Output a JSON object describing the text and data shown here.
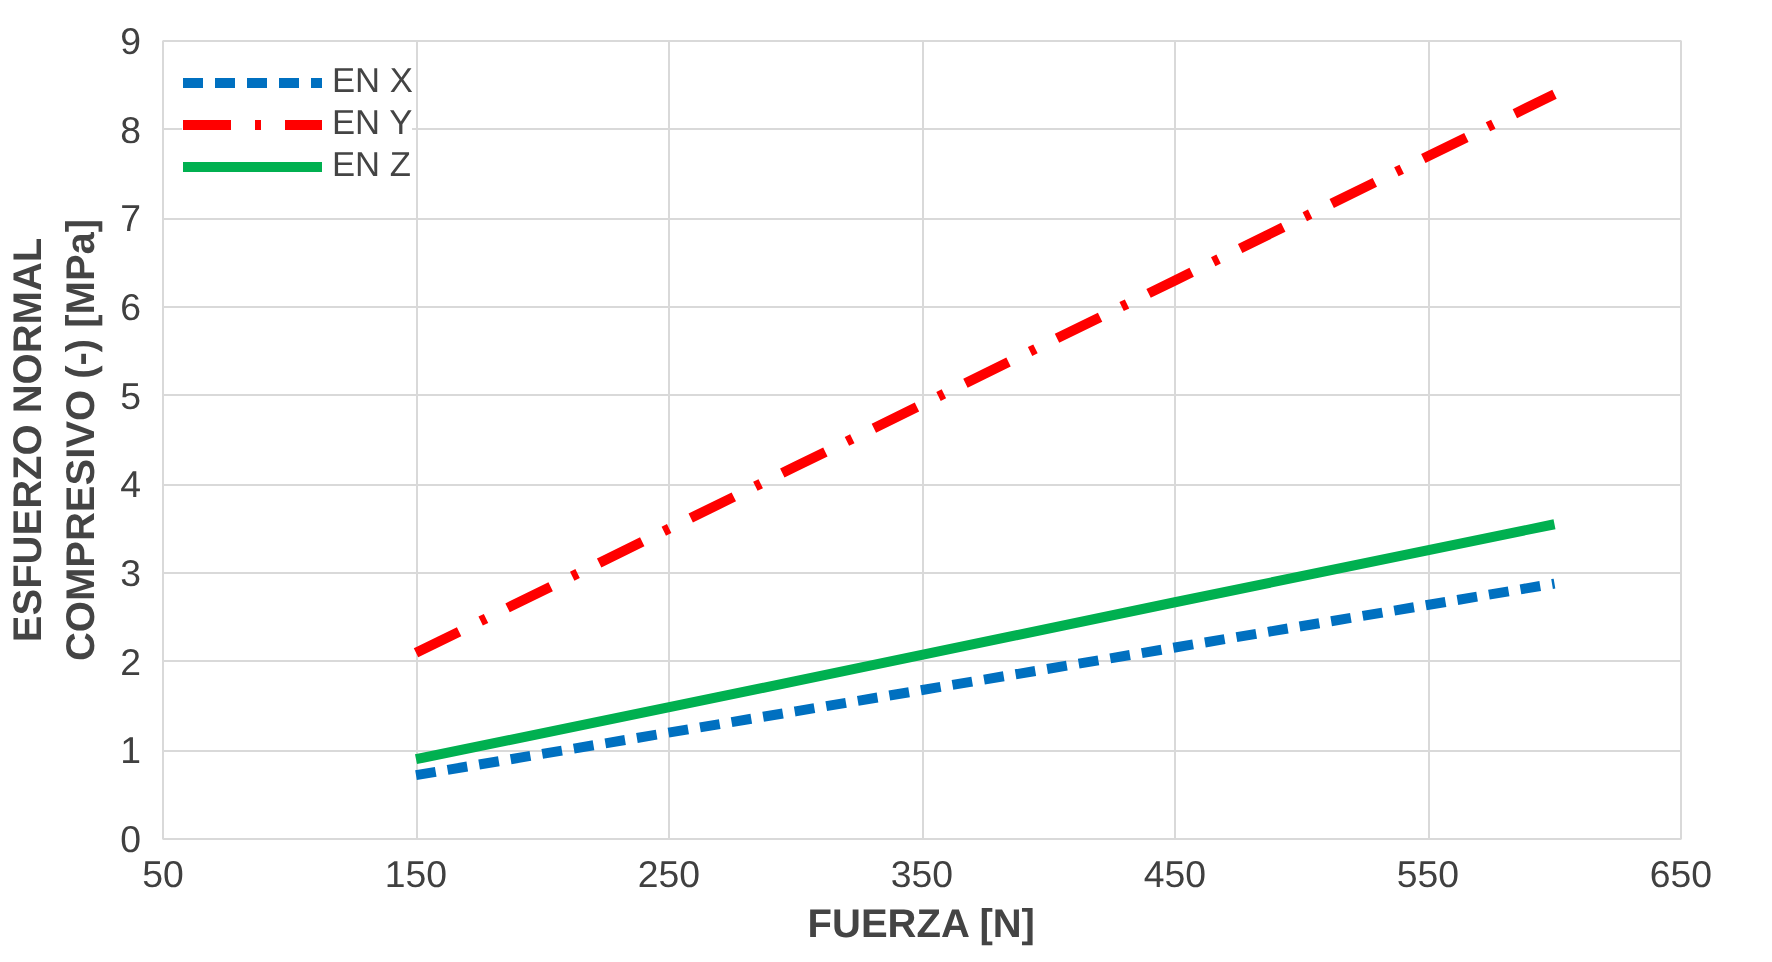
{
  "chart_data": {
    "type": "line",
    "xlabel": "FUERZA [N]",
    "ylabel": "ESFUERZO NORMAL\nCOMPRESIVO (-) [MPa]",
    "x": [
      150,
      300,
      450,
      600
    ],
    "series": [
      {
        "name": "EN X",
        "color": "#0070c0",
        "line_style": "dashed",
        "values": [
          0.72,
          1.44,
          2.16,
          2.88
        ]
      },
      {
        "name": "EN Y",
        "color": "#ff0000",
        "line_style": "dashdot",
        "values": [
          2.1,
          4.2,
          6.3,
          8.4
        ]
      },
      {
        "name": "EN Z",
        "color": "#00b050",
        "line_style": "solid",
        "values": [
          0.9,
          1.78,
          2.67,
          3.55
        ]
      }
    ],
    "xlim": [
      50,
      650
    ],
    "xticks": [
      50,
      150,
      250,
      350,
      450,
      550,
      650
    ],
    "ylim": [
      0,
      9
    ],
    "yticks": [
      0,
      1,
      2,
      3,
      4,
      5,
      6,
      7,
      8,
      9
    ],
    "grid": true,
    "legend": "top left",
    "marker": "none"
  }
}
